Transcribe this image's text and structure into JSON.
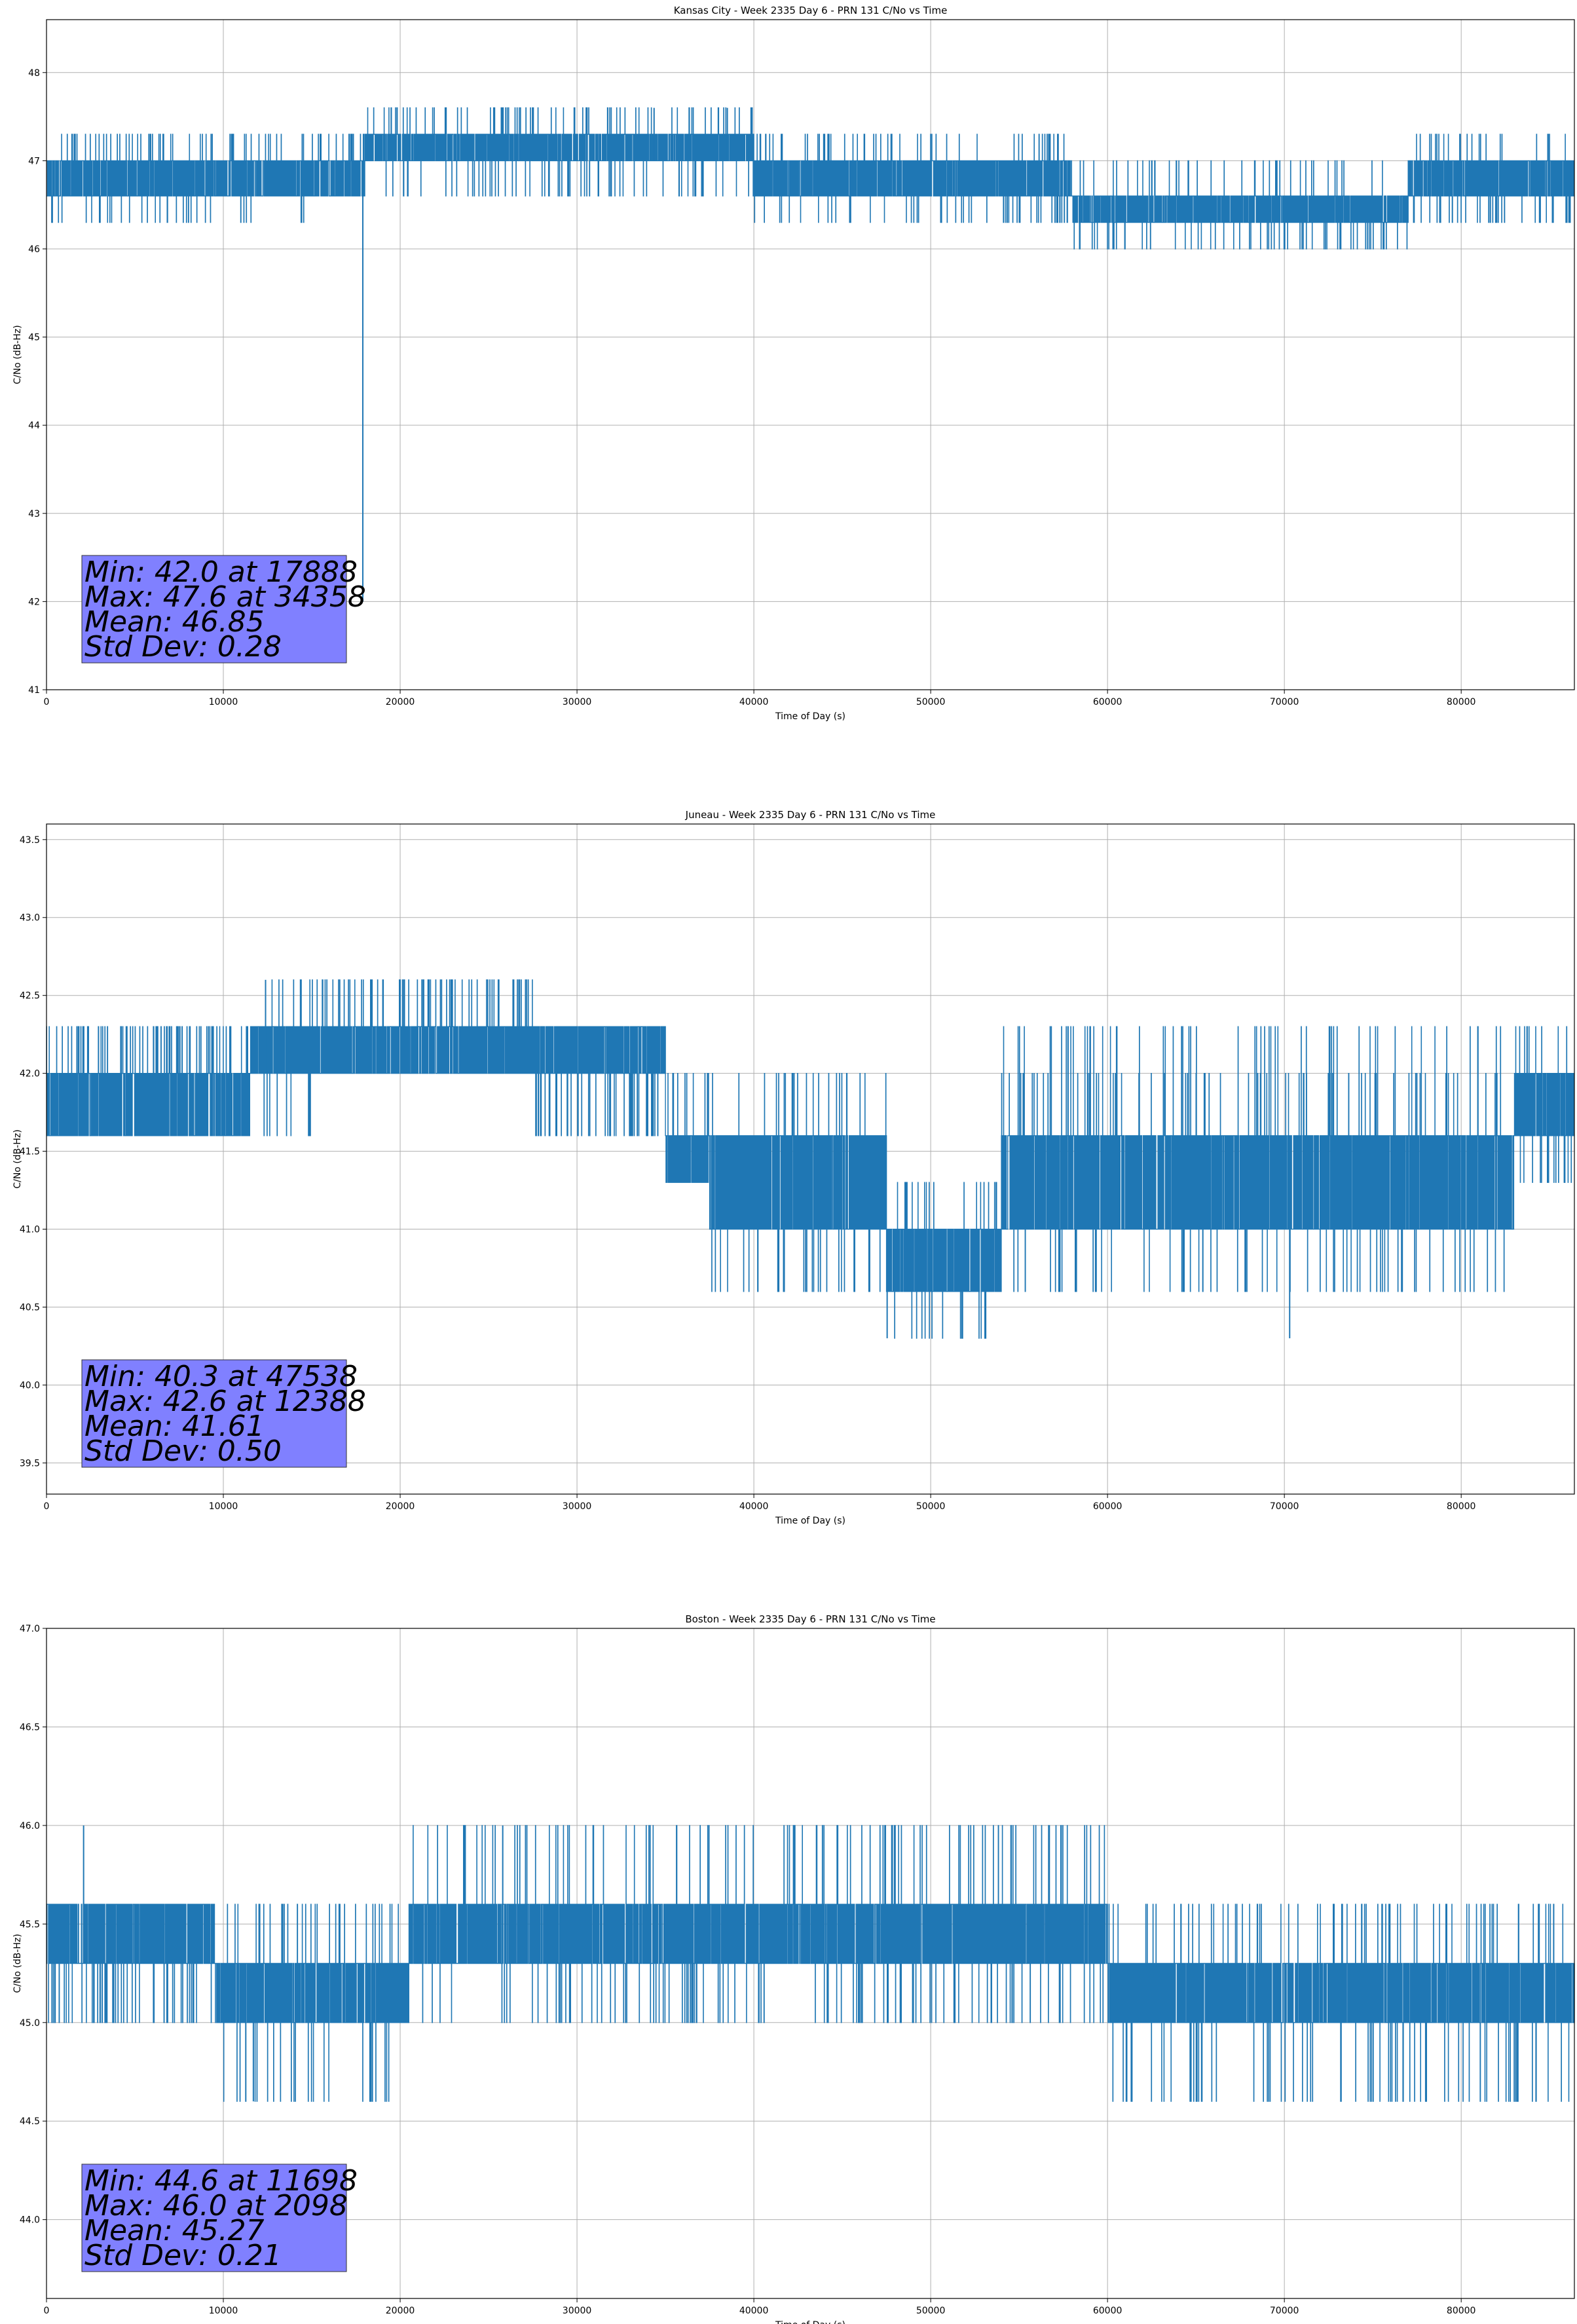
{
  "colors": {
    "line": "#1f77b4",
    "statbox": "#8080ff",
    "grid": "#b0b0b0"
  },
  "chart_data": [
    {
      "type": "line",
      "title": "Kansas City - Week 2335 Day 6 - PRN 131 C/No vs Time",
      "xlabel": "Time of Day (s)",
      "ylabel": "C/No (dB-Hz)",
      "xlim": [
        0,
        86400
      ],
      "ylim": [
        41,
        48.6
      ],
      "xticks": [
        0,
        10000,
        20000,
        30000,
        40000,
        50000,
        60000,
        70000,
        80000
      ],
      "yticks": [
        41,
        42,
        43,
        44,
        45,
        46,
        47,
        48
      ],
      "ytick_labels": [
        "41",
        "42",
        "43",
        "44",
        "45",
        "46",
        "47",
        "48"
      ],
      "grid": true,
      "segments": [
        {
          "x0": 0,
          "x1": 14900,
          "main": [
            46.6,
            47.0
          ],
          "occasional": [
            47.3,
            46.3
          ]
        },
        {
          "x0": 14900,
          "x1": 18000,
          "main": [
            46.6,
            47.0
          ],
          "occasional": [
            47.3
          ]
        },
        {
          "x0": 18000,
          "x1": 40000,
          "main": [
            47.0,
            47.3
          ],
          "occasional": [
            46.6,
            47.6
          ]
        },
        {
          "x0": 40000,
          "x1": 58000,
          "main": [
            46.6,
            47.0
          ],
          "occasional": [
            47.3,
            46.3
          ]
        },
        {
          "x0": 58000,
          "x1": 77000,
          "main": [
            46.3,
            46.6
          ],
          "occasional": [
            47.0,
            46.0
          ]
        },
        {
          "x0": 77000,
          "x1": 86400,
          "main": [
            46.6,
            47.0
          ],
          "occasional": [
            47.3,
            46.3
          ]
        }
      ],
      "spikes": [
        {
          "x": 17888,
          "y": 42.0
        },
        {
          "x": 34358,
          "y": 47.6
        },
        {
          "x": 38500,
          "y": 47.6
        }
      ],
      "stats": [
        "Min: 42.0 at 17888",
        "Max: 47.6 at 34358",
        "Mean: 46.85",
        "Std Dev: 0.28"
      ]
    },
    {
      "type": "line",
      "title": "Juneau - Week 2335 Day 6 - PRN 131 C/No vs Time",
      "xlabel": "Time of Day (s)",
      "ylabel": "C/No (dB-Hz)",
      "xlim": [
        0,
        86400
      ],
      "ylim": [
        39.3,
        43.6
      ],
      "xticks": [
        0,
        10000,
        20000,
        30000,
        40000,
        50000,
        60000,
        70000,
        80000
      ],
      "yticks": [
        39.5,
        40.0,
        40.5,
        41.0,
        41.5,
        42.0,
        42.5,
        43.0,
        43.5
      ],
      "ytick_labels": [
        "39.5",
        "40.0",
        "40.5",
        "41.0",
        "41.5",
        "42.0",
        "42.5",
        "43.0",
        "43.5"
      ],
      "grid": true,
      "segments": [
        {
          "x0": 0,
          "x1": 11500,
          "main": [
            41.6,
            42.0
          ],
          "occasional": [
            42.3
          ]
        },
        {
          "x0": 11500,
          "x1": 15000,
          "main": [
            42.0,
            42.3
          ],
          "occasional": [
            42.6,
            41.6
          ]
        },
        {
          "x0": 15000,
          "x1": 27500,
          "main": [
            42.0,
            42.3
          ],
          "occasional": [
            42.6
          ]
        },
        {
          "x0": 27500,
          "x1": 35000,
          "main": [
            42.0,
            42.3
          ],
          "occasional": [
            41.6
          ]
        },
        {
          "x0": 35000,
          "x1": 37500,
          "main": [
            41.3,
            41.6
          ],
          "occasional": [
            42.0
          ]
        },
        {
          "x0": 37500,
          "x1": 47500,
          "main": [
            41.0,
            41.6
          ],
          "occasional": [
            40.6,
            42.0
          ]
        },
        {
          "x0": 47500,
          "x1": 54000,
          "main": [
            40.6,
            41.0
          ],
          "occasional": [
            41.3,
            40.3
          ]
        },
        {
          "x0": 54000,
          "x1": 83000,
          "main": [
            41.0,
            41.6
          ],
          "occasional": [
            40.6,
            42.0,
            42.3
          ]
        },
        {
          "x0": 83000,
          "x1": 86400,
          "main": [
            41.6,
            42.0
          ],
          "occasional": [
            42.3,
            41.3
          ]
        }
      ],
      "spikes": [
        {
          "x": 12388,
          "y": 42.6
        },
        {
          "x": 47538,
          "y": 40.3
        },
        {
          "x": 70300,
          "y": 40.3
        }
      ],
      "stats": [
        "Min: 40.3 at 47538",
        "Max: 42.6 at 12388",
        "Mean: 41.61",
        "Std Dev: 0.50"
      ]
    },
    {
      "type": "line",
      "title": "Boston - Week 2335 Day 6 - PRN 131 C/No vs Time",
      "xlabel": "Time of Day (s)",
      "ylabel": "C/No (dB-Hz)",
      "xlim": [
        0,
        86400
      ],
      "ylim": [
        43.6,
        47.0
      ],
      "xticks": [
        0,
        10000,
        20000,
        30000,
        40000,
        50000,
        60000,
        70000,
        80000
      ],
      "yticks": [
        44.0,
        44.5,
        45.0,
        45.5,
        46.0,
        46.5,
        47.0
      ],
      "ytick_labels": [
        "44.0",
        "44.5",
        "45.0",
        "45.5",
        "46.0",
        "46.5",
        "47.0"
      ],
      "grid": true,
      "segments": [
        {
          "x0": 0,
          "x1": 9500,
          "main": [
            45.3,
            45.6
          ],
          "occasional": [
            45.0
          ]
        },
        {
          "x0": 9500,
          "x1": 20500,
          "main": [
            45.0,
            45.3
          ],
          "occasional": [
            45.6,
            44.6
          ]
        },
        {
          "x0": 20500,
          "x1": 60000,
          "main": [
            45.3,
            45.6
          ],
          "occasional": [
            45.0,
            46.0
          ]
        },
        {
          "x0": 60000,
          "x1": 86400,
          "main": [
            45.0,
            45.3
          ],
          "occasional": [
            44.6,
            45.6
          ]
        }
      ],
      "spikes": [
        {
          "x": 2098,
          "y": 46.0
        },
        {
          "x": 11698,
          "y": 44.6
        },
        {
          "x": 25800,
          "y": 46.0
        }
      ],
      "stats": [
        "Min: 44.6 at 11698",
        "Max: 46.0 at 2098",
        "Mean: 45.27",
        "Std Dev: 0.21"
      ]
    }
  ]
}
